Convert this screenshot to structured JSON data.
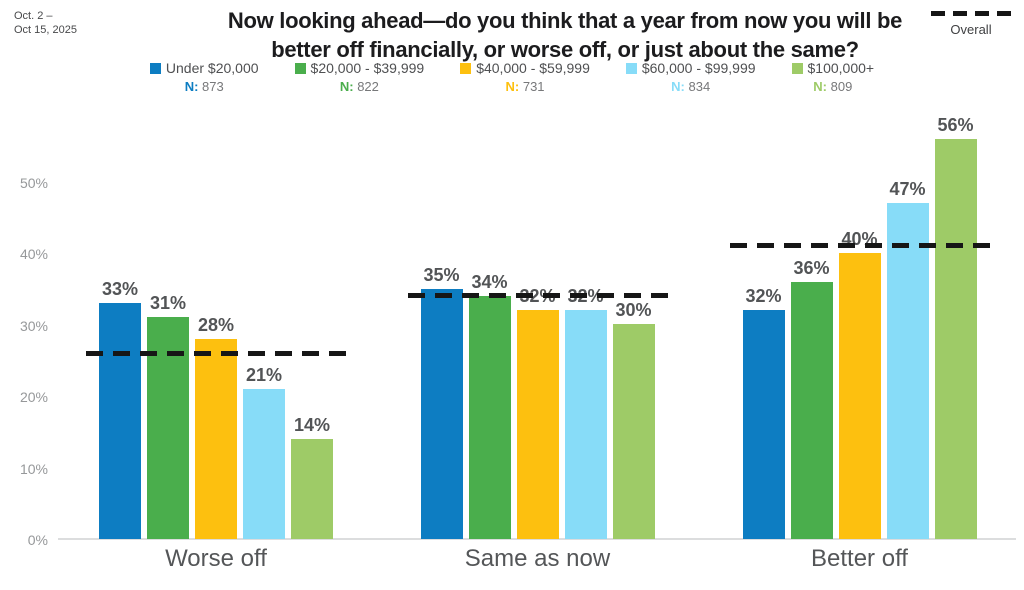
{
  "meta": {
    "date_line1": "Oct. 2 –",
    "date_line2": "Oct 15, 2025"
  },
  "title_line1": "Now looking ahead—do you think that a year from now you will be",
  "title_line2": "better off financially, or worse off, or just about the same?",
  "overall_legend_label": "Overall",
  "n_prefix": "N:",
  "chart_data": {
    "type": "bar",
    "title": "Now looking ahead—do you think that a year from now you will be better off financially, or worse off, or just about the same?",
    "survey_dates": "Oct. 2 – Oct 15, 2025",
    "categories": [
      "Worse off",
      "Same as now",
      "Better off"
    ],
    "series": [
      {
        "name": "Under $20,000",
        "n": 873,
        "color": "#0d7dc2",
        "values": [
          33,
          35,
          32
        ]
      },
      {
        "name": "$20,000 - $39,999",
        "n": 822,
        "color": "#4aae4c",
        "values": [
          31,
          34,
          36
        ]
      },
      {
        "name": "$40,000 - $59,999",
        "n": 731,
        "color": "#fdc00f",
        "values": [
          28,
          32,
          40
        ]
      },
      {
        "name": "$60,000 - $99,999",
        "n": 834,
        "color": "#87dcf8",
        "values": [
          21,
          32,
          47
        ]
      },
      {
        "name": "$100,000+",
        "n": 809,
        "color": "#9ecb67",
        "values": [
          14,
          30,
          56
        ]
      }
    ],
    "overall": {
      "name": "Overall",
      "line_style": "dashed",
      "color": "#111111",
      "values": [
        26,
        34,
        41
      ],
      "values_estimated_from_gridlines": true
    },
    "value_suffix": "%",
    "y_axis": {
      "tick_values": [
        0,
        10,
        20,
        30,
        40,
        50
      ],
      "tick_suffix": "%",
      "min": 0,
      "max": 60
    },
    "grid": false,
    "legend_position": "top"
  }
}
